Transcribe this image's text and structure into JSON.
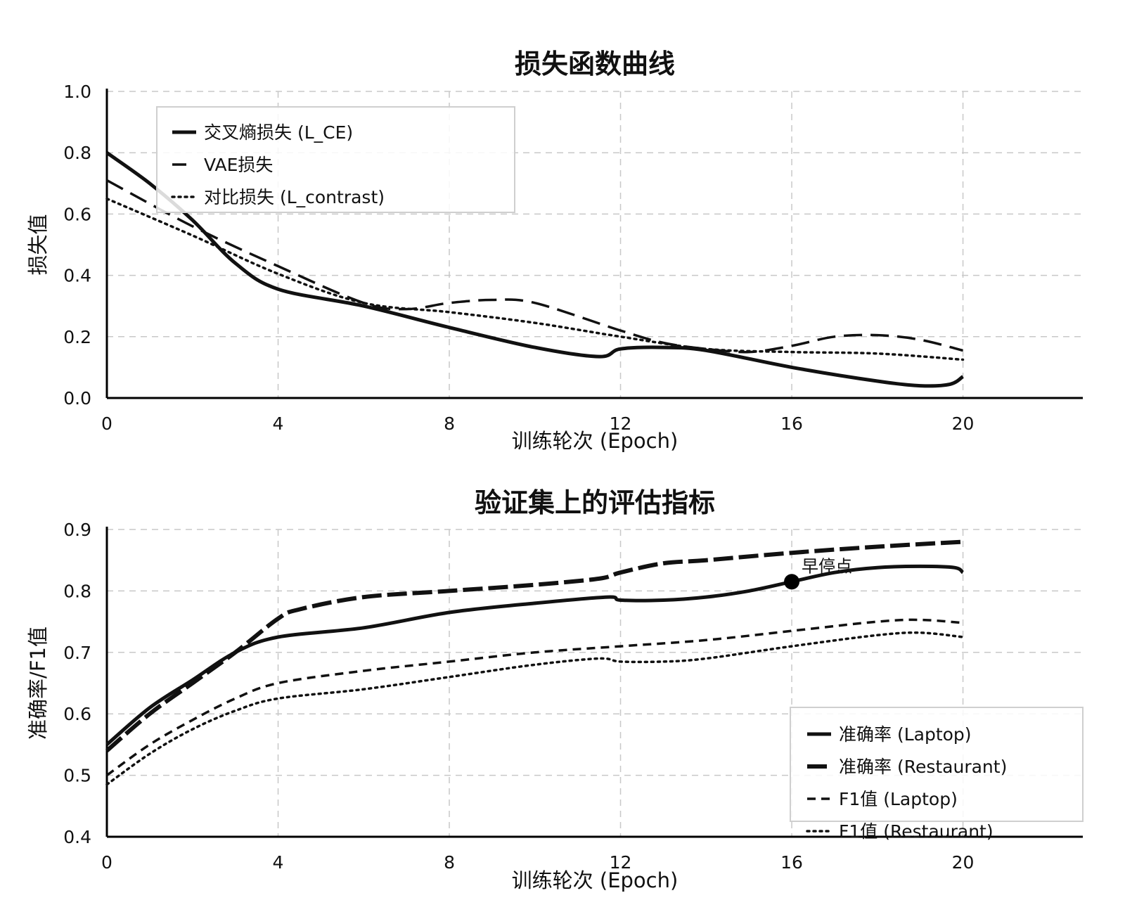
{
  "chart_data": [
    {
      "type": "line",
      "title": "损失函数曲线",
      "xlabel": "训练轮次 (Epoch)",
      "ylabel": "损失值",
      "xlim": [
        0,
        22.8
      ],
      "ylim": [
        0,
        1.0
      ],
      "xticks": [
        0,
        4,
        8,
        12,
        16,
        20
      ],
      "yticks": [
        "0.0",
        "0.2",
        "0.4",
        "0.6",
        "0.8",
        "1.0"
      ],
      "grid": true,
      "legend_position": "top-left",
      "series": [
        {
          "name": "交叉熵损失 (L_CE)",
          "style": "solid",
          "x": [
            0,
            1,
            2,
            3,
            4,
            6,
            8,
            10,
            11.5,
            12,
            13,
            14,
            16,
            18,
            19,
            19.7,
            20
          ],
          "values": [
            0.8,
            0.7,
            0.58,
            0.44,
            0.355,
            0.3,
            0.23,
            0.165,
            0.135,
            0.16,
            0.165,
            0.155,
            0.1,
            0.055,
            0.04,
            0.045,
            0.07
          ]
        },
        {
          "name": "VAE损失",
          "style": "dashed",
          "x": [
            0,
            2,
            4,
            6,
            7,
            8,
            9,
            10,
            12,
            13,
            14,
            15,
            16,
            17,
            18,
            19,
            20
          ],
          "values": [
            0.71,
            0.56,
            0.43,
            0.31,
            0.29,
            0.31,
            0.32,
            0.31,
            0.22,
            0.18,
            0.16,
            0.15,
            0.17,
            0.2,
            0.205,
            0.19,
            0.155
          ]
        },
        {
          "name": "对比损失 (L_contrast)",
          "style": "dotted",
          "x": [
            0,
            2,
            4,
            6,
            8,
            10,
            12,
            14,
            16,
            18,
            20
          ],
          "values": [
            0.65,
            0.53,
            0.405,
            0.31,
            0.28,
            0.245,
            0.2,
            0.16,
            0.15,
            0.145,
            0.125
          ]
        }
      ]
    },
    {
      "type": "line",
      "title": "验证集上的评估指标",
      "xlabel": "训练轮次 (Epoch)",
      "ylabel": "准确率/F1值",
      "xlim": [
        0,
        22.8
      ],
      "ylim": [
        0.4,
        0.9
      ],
      "xticks": [
        0,
        4,
        8,
        12,
        16,
        20
      ],
      "yticks": [
        "0.4",
        "0.5",
        "0.6",
        "0.7",
        "0.8",
        "0.9"
      ],
      "grid": true,
      "legend_position": "bottom-right",
      "annotations": [
        {
          "text": "早停点",
          "x": 16,
          "y": 0.815
        }
      ],
      "series": [
        {
          "name": "准确率 (Laptop)",
          "style": "solid",
          "x": [
            0,
            1,
            2,
            3,
            4,
            6,
            8,
            10,
            11.7,
            12,
            13,
            14,
            15,
            16,
            17,
            18,
            19,
            19.8,
            20
          ],
          "values": [
            0.55,
            0.61,
            0.655,
            0.7,
            0.725,
            0.74,
            0.765,
            0.78,
            0.79,
            0.785,
            0.785,
            0.79,
            0.8,
            0.815,
            0.83,
            0.838,
            0.84,
            0.838,
            0.83
          ]
        },
        {
          "name": "准确率 (Restaurant)",
          "style": "longdash",
          "x": [
            0,
            1,
            2,
            3,
            4,
            4.5,
            6,
            8,
            10,
            11.5,
            12,
            13,
            14,
            16,
            18,
            20
          ],
          "values": [
            0.54,
            0.6,
            0.65,
            0.7,
            0.755,
            0.77,
            0.79,
            0.8,
            0.81,
            0.82,
            0.83,
            0.845,
            0.85,
            0.862,
            0.872,
            0.88
          ]
        },
        {
          "name": "F1值 (Laptop)",
          "style": "shortdash",
          "x": [
            0,
            1,
            2,
            3,
            4,
            6,
            8,
            10,
            12,
            14,
            16,
            18,
            19,
            20
          ],
          "values": [
            0.5,
            0.55,
            0.59,
            0.625,
            0.65,
            0.67,
            0.685,
            0.7,
            0.71,
            0.72,
            0.735,
            0.75,
            0.753,
            0.748
          ]
        },
        {
          "name": "F1值 (Restaurant)",
          "style": "dotted",
          "x": [
            0,
            1,
            2,
            3,
            4,
            6,
            8,
            10,
            11.5,
            12,
            13,
            14,
            16,
            18,
            19,
            20
          ],
          "values": [
            0.485,
            0.535,
            0.575,
            0.605,
            0.625,
            0.64,
            0.66,
            0.68,
            0.69,
            0.685,
            0.685,
            0.69,
            0.71,
            0.728,
            0.732,
            0.725
          ]
        }
      ]
    }
  ]
}
